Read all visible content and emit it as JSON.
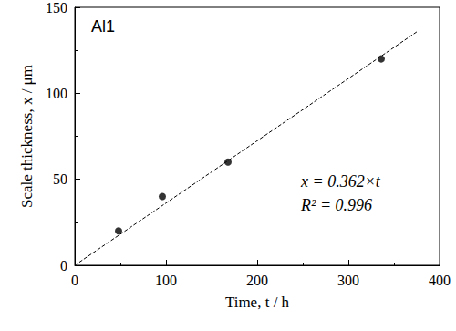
{
  "chart_data": {
    "type": "scatter",
    "title": "Al1",
    "x": [
      48,
      96,
      168,
      336
    ],
    "values": [
      20,
      40,
      60,
      120
    ],
    "color": "#000000",
    "marker": "circle",
    "xlabel": "Time, t / h",
    "ylabel": "Scale thickness, x / μm",
    "fit": {
      "type": "line",
      "x": [
        0,
        375
      ],
      "values": [
        0,
        135.75
      ],
      "line_style": "dashed",
      "color": "#000000"
    },
    "annotations": [
      "x = 0.362×t",
      "R² = 0.996"
    ],
    "xlim": [
      0,
      400
    ],
    "xticks": [
      0,
      100,
      200,
      300,
      400
    ],
    "ylim": [
      0,
      150
    ],
    "yticks": [
      0,
      50,
      100,
      150
    ],
    "grid": false
  }
}
